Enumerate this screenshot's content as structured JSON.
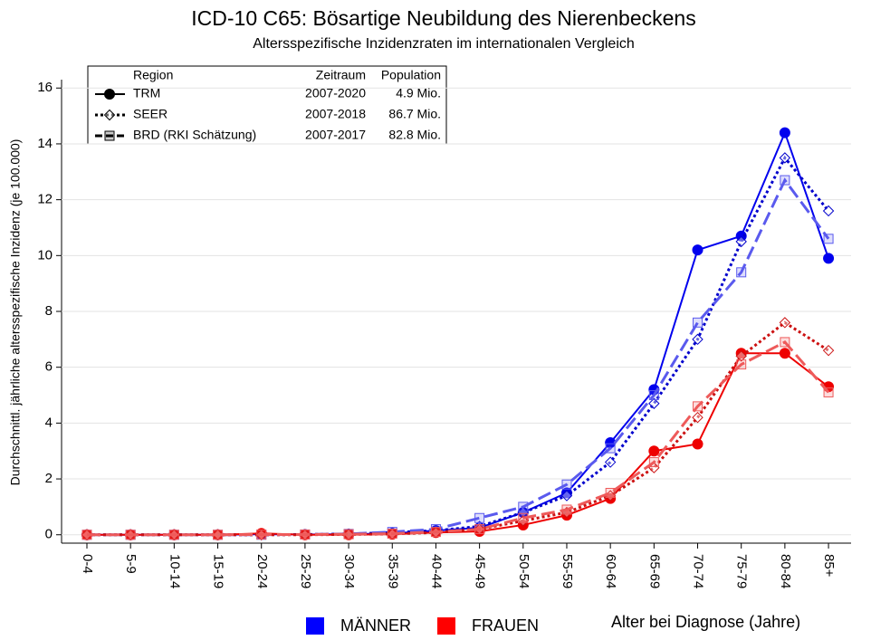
{
  "chart_data": {
    "type": "line",
    "title": "ICD-10 C65: Bösartige Neubildung des Nierenbeckens",
    "subtitle": "Altersspezifische Inzidenzraten im internationalen Vergleich",
    "y_label": "Durchschnittl. jährliche altersspezifische Inzidenz (je 100.000)",
    "x_label": "Alter bei Diagnose (Jahre)",
    "categories": [
      "0-4",
      "5-9",
      "10-14",
      "15-19",
      "20-24",
      "25-29",
      "30-34",
      "35-39",
      "40-44",
      "45-49",
      "50-54",
      "55-59",
      "60-64",
      "65-69",
      "70-74",
      "75-79",
      "80-84",
      "85+"
    ],
    "ylim": [
      -0.3,
      16.3
    ],
    "yticks": [
      0,
      2,
      4,
      6,
      8,
      10,
      12,
      14,
      16
    ],
    "grid": true,
    "legend": {
      "headers": [
        "Region",
        "Zeitraum",
        "Population"
      ],
      "rows": [
        {
          "name": "TRM",
          "period": "2007-2020",
          "population": "4.9 Mio.",
          "marker": "circle",
          "dash": "solid"
        },
        {
          "name": "SEER",
          "period": "2007-2018",
          "population": "86.7 Mio.",
          "marker": "diamond",
          "dash": "dotted"
        },
        {
          "name": "BRD (RKI Schätzung)",
          "period": "2007-2017",
          "population": "82.8 Mio.",
          "marker": "square",
          "dash": "dashed"
        }
      ]
    },
    "groups": [
      {
        "name": "MÄNNER",
        "color": "#0000ff",
        "series": [
          {
            "color": "#0000ee",
            "values": [
              0,
              0,
              0,
              0,
              0.02,
              0.01,
              0.02,
              0.05,
              0.15,
              0.25,
              0.8,
              1.5,
              3.3,
              5.2,
              10.2,
              10.7,
              14.4,
              9.9
            ]
          },
          {
            "color": "#0000cc",
            "values": [
              0,
              0,
              0,
              0,
              0,
              0.01,
              0.03,
              0.08,
              0.15,
              0.3,
              0.8,
              1.4,
              2.6,
              4.7,
              7.0,
              10.5,
              13.5,
              11.6
            ]
          },
          {
            "color": "#5a5aee",
            "values": [
              0,
              0,
              0,
              0,
              0,
              0.01,
              0.03,
              0.1,
              0.2,
              0.6,
              1.0,
              1.8,
              3.1,
              5.0,
              7.6,
              9.4,
              12.7,
              10.6
            ]
          }
        ]
      },
      {
        "name": "FRAUEN",
        "color": "#ff0000",
        "series": [
          {
            "color": "#ee0000",
            "values": [
              0,
              0,
              0,
              0,
              0.05,
              0,
              0,
              0.02,
              0.08,
              0.12,
              0.35,
              0.7,
              1.3,
              3.0,
              3.25,
              6.5,
              6.5,
              5.3
            ]
          },
          {
            "color": "#cc1111",
            "values": [
              0,
              0,
              0,
              0,
              0,
              0,
              0.01,
              0.03,
              0.08,
              0.2,
              0.5,
              0.8,
              1.4,
              2.4,
              4.2,
              6.4,
              7.6,
              6.6
            ]
          },
          {
            "color": "#ee5a5a",
            "values": [
              0,
              0,
              0,
              0,
              0.01,
              0.01,
              0.02,
              0.04,
              0.1,
              0.2,
              0.6,
              0.9,
              1.5,
              2.6,
              4.6,
              6.1,
              6.9,
              5.1
            ]
          }
        ]
      }
    ]
  }
}
